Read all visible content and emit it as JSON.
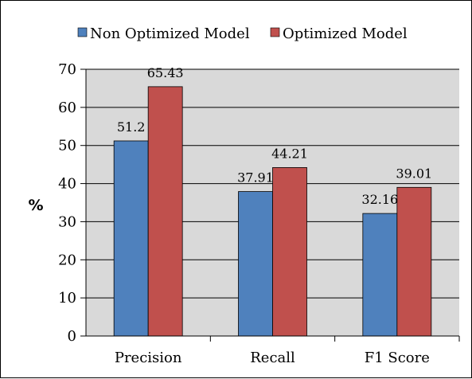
{
  "chart_data": {
    "type": "bar",
    "categories": [
      "Precision",
      "Recall",
      "F1 Score"
    ],
    "series": [
      {
        "name": "Non Optimized Model",
        "values": [
          51.2,
          37.91,
          32.16
        ],
        "labels": [
          "51.2",
          "37.91",
          "32.16"
        ],
        "color": "#4F81BD"
      },
      {
        "name": "Optimized Model",
        "values": [
          65.43,
          44.21,
          39.01
        ],
        "labels": [
          "65.43",
          "44.21",
          "39.01"
        ],
        "color": "#C0504D"
      }
    ],
    "ylabel": "%",
    "ylim": [
      0,
      70
    ],
    "yticks": [
      "0",
      "10",
      "20",
      "30",
      "40",
      "50",
      "60",
      "70"
    ],
    "grid": true,
    "plot_background": "#D9D9D9",
    "legend_position": "top"
  }
}
